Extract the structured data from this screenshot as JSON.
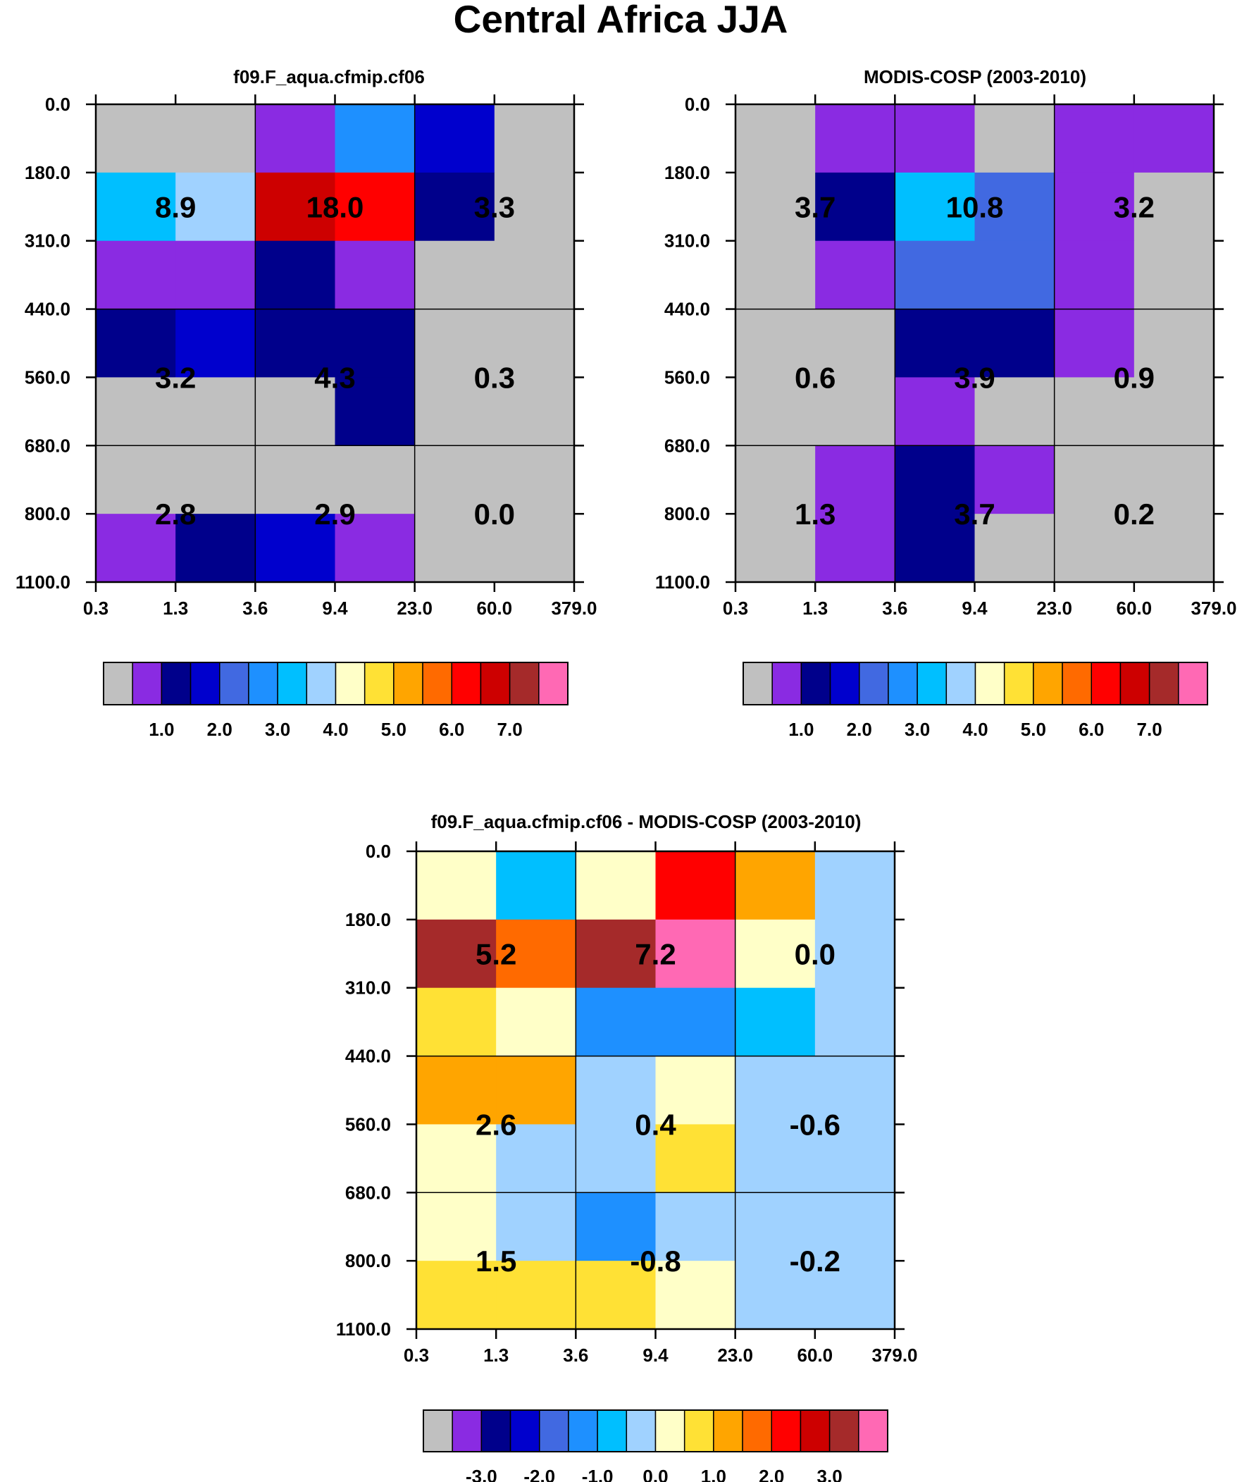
{
  "page_title": "Central Africa JJA",
  "palette": [
    "#c0c0c0",
    "#8a2be2",
    "#00008b",
    "#0000cd",
    "#4169e1",
    "#1e90ff",
    "#00bfff",
    "#a0d2ff",
    "#ffffc8",
    "#ffe135",
    "#ffa500",
    "#ff6a00",
    "#ff0000",
    "#cd0000",
    "#a52a2a",
    "#ff69b4"
  ],
  "chart_data": [
    {
      "id": "model",
      "type": "heatmap",
      "title": "f09.F_aqua.cfmip.cf06",
      "xlabel": "",
      "ylabel": "",
      "x_ticks": [
        "0.3",
        "1.3",
        "3.6",
        "9.4",
        "23.0",
        "60.0",
        "379.0"
      ],
      "y_ticks": [
        "0.0",
        "180.0",
        "310.0",
        "440.0",
        "560.0",
        "680.0",
        "800.0",
        "1100.0"
      ],
      "cell_colors": [
        [
          0,
          0,
          1,
          5,
          3,
          0
        ],
        [
          6,
          7,
          13,
          12,
          2,
          0
        ],
        [
          1,
          1,
          2,
          1,
          0,
          0
        ],
        [
          2,
          3,
          2,
          2,
          0,
          0
        ],
        [
          0,
          0,
          0,
          2,
          0,
          0
        ],
        [
          0,
          0,
          0,
          0,
          0,
          0
        ],
        [
          1,
          2,
          3,
          1,
          0,
          0
        ]
      ],
      "block_values": [
        [
          "8.9",
          "18.0",
          "3.3"
        ],
        [
          "3.2",
          "4.3",
          "0.3"
        ],
        [
          "2.8",
          "2.9",
          "0.0"
        ]
      ],
      "colorbar_labels": [
        "1.0",
        "2.0",
        "3.0",
        "4.0",
        "5.0",
        "6.0",
        "7.0"
      ]
    },
    {
      "id": "obs",
      "type": "heatmap",
      "title": "MODIS-COSP (2003-2010)",
      "xlabel": "",
      "ylabel": "",
      "x_ticks": [
        "0.3",
        "1.3",
        "3.6",
        "9.4",
        "23.0",
        "60.0",
        "379.0"
      ],
      "y_ticks": [
        "0.0",
        "180.0",
        "310.0",
        "440.0",
        "560.0",
        "680.0",
        "800.0",
        "1100.0"
      ],
      "cell_colors": [
        [
          0,
          1,
          1,
          0,
          1,
          1
        ],
        [
          0,
          2,
          6,
          4,
          1,
          0
        ],
        [
          0,
          1,
          4,
          4,
          1,
          0
        ],
        [
          0,
          0,
          2,
          2,
          1,
          0
        ],
        [
          0,
          0,
          1,
          0,
          0,
          0
        ],
        [
          0,
          1,
          2,
          1,
          0,
          0
        ],
        [
          0,
          1,
          2,
          0,
          0,
          0
        ]
      ],
      "block_values": [
        [
          "3.7",
          "10.8",
          "3.2"
        ],
        [
          "0.6",
          "3.9",
          "0.9"
        ],
        [
          "1.3",
          "3.7",
          "0.2"
        ]
      ],
      "colorbar_labels": [
        "1.0",
        "2.0",
        "3.0",
        "4.0",
        "5.0",
        "6.0",
        "7.0"
      ]
    },
    {
      "id": "diff",
      "type": "heatmap",
      "title": "f09.F_aqua.cfmip.cf06 - MODIS-COSP (2003-2010)",
      "xlabel": "",
      "ylabel": "",
      "x_ticks": [
        "0.3",
        "1.3",
        "3.6",
        "9.4",
        "23.0",
        "60.0",
        "379.0"
      ],
      "y_ticks": [
        "0.0",
        "180.0",
        "310.0",
        "440.0",
        "560.0",
        "680.0",
        "800.0",
        "1100.0"
      ],
      "cell_colors": [
        [
          8,
          6,
          8,
          12,
          10,
          7
        ],
        [
          14,
          11,
          14,
          15,
          8,
          7
        ],
        [
          9,
          8,
          5,
          5,
          6,
          7
        ],
        [
          10,
          10,
          7,
          8,
          7,
          7
        ],
        [
          8,
          7,
          7,
          9,
          7,
          7
        ],
        [
          8,
          7,
          5,
          7,
          7,
          7
        ],
        [
          9,
          9,
          9,
          8,
          7,
          7
        ]
      ],
      "block_values": [
        [
          "5.2",
          "7.2",
          "0.0"
        ],
        [
          "2.6",
          "0.4",
          "-0.6"
        ],
        [
          "1.5",
          "-0.8",
          "-0.2"
        ]
      ],
      "colorbar_labels": [
        "-3.0",
        "-2.0",
        "-1.0",
        "0.0",
        "1.0",
        "2.0",
        "3.0"
      ]
    }
  ]
}
